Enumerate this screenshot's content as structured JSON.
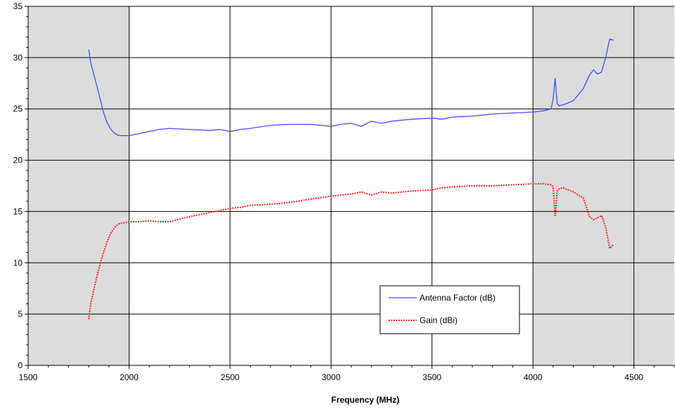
{
  "chart_data": {
    "type": "line",
    "title": "",
    "xlabel": "Frequency (MHz)",
    "ylabel": "",
    "xlim": [
      1500,
      4700
    ],
    "ylim": [
      0,
      35
    ],
    "x_ticks": [
      1500,
      2000,
      2500,
      3000,
      3500,
      4000,
      4500
    ],
    "y_ticks": [
      0,
      5,
      10,
      15,
      20,
      25,
      30,
      35
    ],
    "x_tick_labels": [
      "1500",
      "2000",
      "2500",
      "3000",
      "3500",
      "4000",
      "4500"
    ],
    "y_tick_labels": [
      "0",
      "5",
      "10",
      "15",
      "20",
      "25",
      "30",
      "35"
    ],
    "grid": true,
    "shaded_ranges": [
      [
        1500,
        2000
      ],
      [
        4000,
        4700
      ]
    ],
    "shade_color": "#dcdcdc",
    "legend": {
      "placement": "bottom-center-right"
    },
    "series": [
      {
        "name": "Antenna Factor (dB)",
        "color": "#4a4aff",
        "style": "solid",
        "x": [
          1800,
          1810,
          1830,
          1850,
          1870,
          1890,
          1910,
          1930,
          1950,
          1970,
          2000,
          2050,
          2100,
          2150,
          2200,
          2300,
          2400,
          2450,
          2500,
          2550,
          2600,
          2700,
          2800,
          2900,
          3000,
          3050,
          3100,
          3150,
          3200,
          3250,
          3300,
          3400,
          3500,
          3550,
          3600,
          3700,
          3800,
          3900,
          4000,
          4050,
          4090,
          4100,
          4110,
          4120,
          4130,
          4150,
          4200,
          4250,
          4280,
          4300,
          4320,
          4340,
          4360,
          4380,
          4400
        ],
        "y": [
          30.8,
          29.5,
          28.0,
          26.5,
          24.9,
          23.7,
          23.0,
          22.6,
          22.4,
          22.4,
          22.4,
          22.6,
          22.8,
          23.0,
          23.1,
          23.0,
          22.9,
          23.0,
          22.8,
          23.0,
          23.1,
          23.4,
          23.5,
          23.5,
          23.3,
          23.5,
          23.6,
          23.3,
          23.8,
          23.6,
          23.8,
          24.0,
          24.1,
          24.0,
          24.2,
          24.3,
          24.5,
          24.6,
          24.7,
          24.8,
          25.0,
          26.0,
          28.0,
          25.5,
          25.3,
          25.4,
          25.8,
          27.0,
          28.3,
          28.8,
          28.4,
          28.6,
          30.0,
          31.8,
          31.7
        ]
      },
      {
        "name": "Gain (dBi)",
        "color": "#ff2020",
        "style": "dotted",
        "x": [
          1800,
          1810,
          1830,
          1850,
          1870,
          1890,
          1910,
          1930,
          1950,
          1970,
          2000,
          2050,
          2100,
          2150,
          2200,
          2300,
          2400,
          2450,
          2500,
          2550,
          2600,
          2700,
          2800,
          2900,
          3000,
          3050,
          3100,
          3150,
          3200,
          3250,
          3300,
          3400,
          3500,
          3550,
          3600,
          3700,
          3800,
          3900,
          4000,
          4050,
          4090,
          4100,
          4110,
          4120,
          4130,
          4150,
          4200,
          4250,
          4280,
          4300,
          4320,
          4340,
          4360,
          4380,
          4400
        ],
        "y": [
          4.5,
          6.0,
          7.8,
          9.4,
          10.8,
          12.0,
          12.9,
          13.5,
          13.8,
          13.9,
          14.0,
          14.0,
          14.1,
          14.0,
          14.0,
          14.5,
          14.9,
          15.1,
          15.3,
          15.4,
          15.6,
          15.7,
          15.9,
          16.2,
          16.5,
          16.6,
          16.7,
          16.9,
          16.6,
          16.9,
          16.8,
          17.0,
          17.1,
          17.3,
          17.4,
          17.5,
          17.5,
          17.6,
          17.7,
          17.7,
          17.6,
          17.4,
          14.5,
          17.0,
          17.2,
          17.3,
          16.9,
          16.3,
          14.5,
          14.2,
          14.4,
          14.6,
          13.5,
          11.4,
          11.8
        ]
      }
    ]
  }
}
